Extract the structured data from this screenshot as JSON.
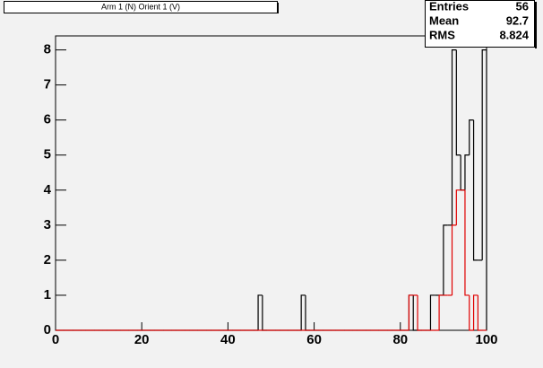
{
  "chart_data": {
    "type": "histogram",
    "title": "Arm 1 (N) Orient 1 (V)",
    "bins": [
      0,
      1,
      2,
      3,
      4,
      5,
      6,
      7,
      8,
      9,
      10,
      11,
      12,
      13,
      14,
      15,
      16,
      17,
      18,
      19,
      20,
      21,
      22,
      23,
      24,
      25,
      26,
      27,
      28,
      29,
      30,
      31,
      32,
      33,
      34,
      35,
      36,
      37,
      38,
      39,
      40,
      41,
      42,
      43,
      44,
      45,
      46,
      47,
      48,
      49,
      50,
      51,
      52,
      53,
      54,
      55,
      56,
      57,
      58,
      59,
      60,
      61,
      62,
      63,
      64,
      65,
      66,
      67,
      68,
      69,
      70,
      71,
      72,
      73,
      74,
      75,
      76,
      77,
      78,
      79,
      80,
      81,
      82,
      83,
      84,
      85,
      86,
      87,
      88,
      89,
      90,
      91,
      92,
      93,
      94,
      95,
      96,
      97,
      98,
      99,
      100
    ],
    "series": [
      {
        "color": "#000000",
        "values": [
          0,
          0,
          0,
          0,
          0,
          0,
          0,
          0,
          0,
          0,
          0,
          0,
          0,
          0,
          0,
          0,
          0,
          0,
          0,
          0,
          0,
          0,
          0,
          0,
          0,
          0,
          0,
          0,
          0,
          0,
          0,
          0,
          0,
          0,
          0,
          0,
          0,
          0,
          0,
          0,
          0,
          0,
          0,
          0,
          0,
          0,
          0,
          1,
          0,
          0,
          0,
          0,
          0,
          0,
          0,
          0,
          0,
          1,
          0,
          0,
          0,
          0,
          0,
          0,
          0,
          0,
          0,
          0,
          0,
          0,
          0,
          0,
          0,
          0,
          0,
          0,
          0,
          0,
          0,
          0,
          0,
          0,
          1,
          0,
          0,
          0,
          0,
          1,
          1,
          1,
          3,
          3,
          8,
          5,
          4,
          5,
          6,
          2,
          2,
          8
        ]
      },
      {
        "color": "#e00000",
        "values": [
          0,
          0,
          0,
          0,
          0,
          0,
          0,
          0,
          0,
          0,
          0,
          0,
          0,
          0,
          0,
          0,
          0,
          0,
          0,
          0,
          0,
          0,
          0,
          0,
          0,
          0,
          0,
          0,
          0,
          0,
          0,
          0,
          0,
          0,
          0,
          0,
          0,
          0,
          0,
          0,
          0,
          0,
          0,
          0,
          0,
          0,
          0,
          0,
          0,
          0,
          0,
          0,
          0,
          0,
          0,
          0,
          0,
          0,
          0,
          0,
          0,
          0,
          0,
          0,
          0,
          0,
          0,
          0,
          0,
          0,
          0,
          0,
          0,
          0,
          0,
          0,
          0,
          0,
          0,
          0,
          0,
          0,
          1,
          1,
          0,
          0,
          0,
          0,
          0,
          1,
          1,
          1,
          3,
          4,
          4,
          1,
          0,
          1,
          0,
          0
        ]
      }
    ],
    "xlim": [
      0,
      100
    ],
    "xticks": [
      0,
      20,
      40,
      60,
      80,
      100
    ],
    "ylim": [
      0,
      8.4
    ],
    "yticks": [
      0,
      1,
      2,
      3,
      4,
      5,
      6,
      7,
      8
    ],
    "stats": [
      {
        "label": "Entries",
        "value": 56
      },
      {
        "label": "Mean",
        "value": 92.7
      },
      {
        "label": "RMS",
        "value": 8.824
      }
    ]
  }
}
